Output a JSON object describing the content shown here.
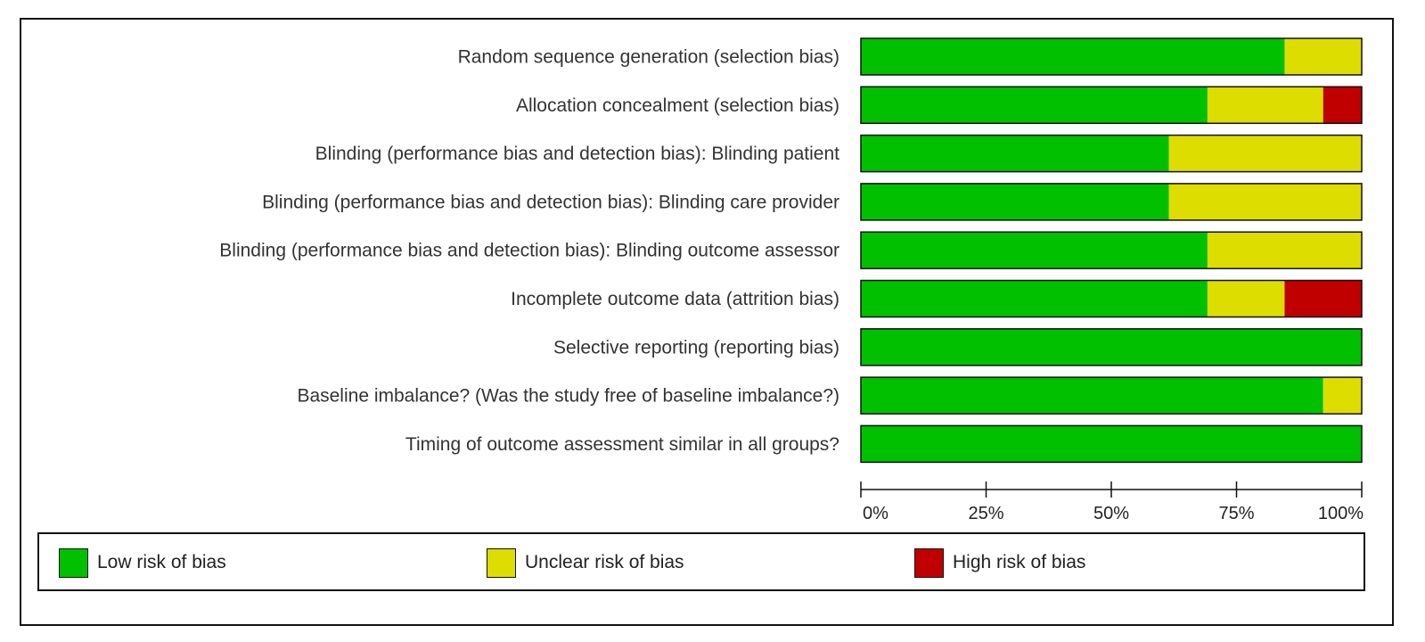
{
  "chart_data": {
    "type": "bar",
    "stacked": true,
    "orientation": "horizontal",
    "categories": [
      "Random sequence generation (selection bias)",
      "Allocation concealment (selection bias)",
      "Blinding (performance bias and detection bias): Blinding patient",
      "Blinding (performance bias and detection bias): Blinding care provider",
      "Blinding (performance bias and detection bias): Blinding outcome assessor",
      "Incomplete outcome data (attrition bias)",
      "Selective reporting (reporting bias)",
      "Baseline imbalance? (Was the study free of baseline imbalance?)",
      "Timing of outcome assessment similar in all groups?"
    ],
    "series": [
      {
        "name": "Low risk of bias",
        "color": "#00c000",
        "values": [
          84.6,
          69.2,
          61.5,
          61.5,
          69.2,
          69.2,
          100,
          92.3,
          100
        ]
      },
      {
        "name": "Unclear risk of bias",
        "color": "#dddd00",
        "values": [
          15.4,
          23.1,
          38.5,
          38.5,
          30.8,
          15.4,
          0,
          7.7,
          0
        ]
      },
      {
        "name": "High risk of bias",
        "color": "#c00000",
        "values": [
          0,
          7.7,
          0,
          0,
          0,
          15.4,
          0,
          0,
          0
        ]
      }
    ],
    "xlim": [
      0,
      100
    ],
    "xticks": [
      "0%",
      "25%",
      "50%",
      "75%",
      "100%"
    ],
    "legend_position": "bottom",
    "grid": false
  }
}
